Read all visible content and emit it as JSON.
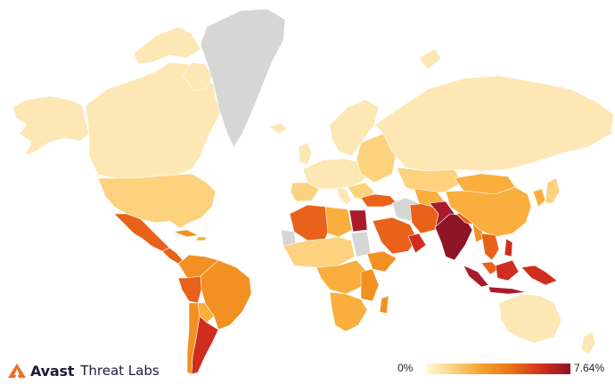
{
  "map": {
    "scale": {
      "min_label": "0%",
      "max_label": "7.64%",
      "colors": [
        "#fff6dd",
        "#fbd585",
        "#f6a12e",
        "#ec7519",
        "#d2301f",
        "#8e1428"
      ],
      "nodata_color": "#d6d6d6"
    }
  },
  "brand": {
    "name": "Avast",
    "subtitle": "Threat Labs",
    "accent": "#f36c21"
  }
}
